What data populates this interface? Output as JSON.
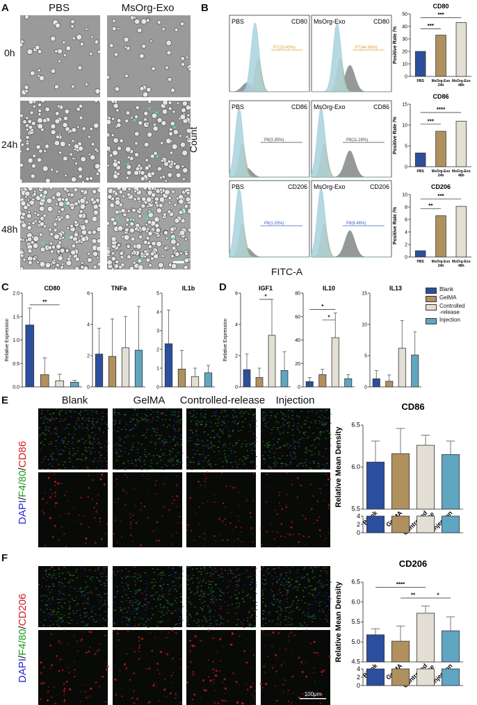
{
  "panels": {
    "A": "A",
    "B": "B",
    "C": "C",
    "D": "D",
    "E": "E",
    "F": "F"
  },
  "panelA": {
    "columns": [
      "PBS",
      "MsOrg-Exo"
    ],
    "rows": [
      "0h",
      "24h",
      "48h"
    ]
  },
  "panelB": {
    "count_label": "Count",
    "xaxis_label": "FITC-A",
    "histograms": [
      {
        "group": "PBS",
        "marker": "CD80",
        "gate": "P7(10.43%)"
      },
      {
        "group": "MsOrg-Exo",
        "marker": "CD80",
        "gate": "P7(44.99%)"
      },
      {
        "group": "PBS",
        "marker": "CD86",
        "gate": "P8(3.35%)"
      },
      {
        "group": "MsOrg-Exo",
        "marker": "CD86",
        "gate": "P8(11.28%)"
      },
      {
        "group": "PBS",
        "marker": "CD206",
        "gate": "P8(1.03%)"
      },
      {
        "group": "MsOrg-Exo",
        "marker": "CD206",
        "gate": "P8(8.46%)"
      }
    ],
    "bar_ylabel": "Positive Rate /%",
    "bar_categories": [
      "PBS",
      "MsOrg-Exo 24h",
      "MsOrg-Exo 48h"
    ]
  },
  "chart_data": [
    {
      "type": "bar",
      "title": "CD80",
      "categories": [
        "PBS",
        "MsOrg-Exo 24h",
        "MsOrg-Exo 48h"
      ],
      "values": [
        20,
        33,
        43
      ],
      "ylim": [
        0,
        50
      ],
      "ylabel": "Positive Rate /%",
      "significance": [
        "***",
        "***",
        "***"
      ]
    },
    {
      "type": "bar",
      "title": "CD86",
      "categories": [
        "PBS",
        "MsOrg-Exo 24h",
        "MsOrg-Exo 48h"
      ],
      "values": [
        3.3,
        8.5,
        10.9
      ],
      "ylim": [
        0,
        15
      ],
      "ylabel": "Positive Rate /%",
      "significance": [
        "****",
        "***"
      ]
    },
    {
      "type": "bar",
      "title": "CD206",
      "categories": [
        "PBS",
        "MsOrg-Exo 24h",
        "MsOrg-Exo 48h"
      ],
      "values": [
        1.0,
        6.6,
        8.1
      ],
      "ylim": [
        0,
        10
      ],
      "ylabel": "Positive Rate /%",
      "significance": [
        "***",
        "**"
      ]
    },
    {
      "type": "bar",
      "title": "CD80",
      "categories": [
        "Blank",
        "GelMA",
        "Controlled-release",
        "Injection"
      ],
      "values": [
        1.32,
        0.26,
        0.13,
        0.1
      ],
      "errors": [
        0.36,
        0.36,
        0.14,
        0.04
      ],
      "ylim": [
        0,
        2
      ],
      "ylabel": "Relative Expression",
      "significance": [
        "**"
      ]
    },
    {
      "type": "bar",
      "title": "TNFa",
      "categories": [
        "Blank",
        "GelMA",
        "Controlled-release",
        "Injection"
      ],
      "values": [
        2.1,
        1.95,
        2.5,
        2.35
      ],
      "errors": [
        1.65,
        2.4,
        2.0,
        2.8
      ],
      "ylim": [
        0,
        6
      ]
    },
    {
      "type": "bar",
      "title": "IL1b",
      "categories": [
        "Blank",
        "GelMA",
        "Controlled-release",
        "Injection"
      ],
      "values": [
        2.3,
        0.95,
        0.55,
        0.75
      ],
      "errors": [
        1.8,
        1.0,
        0.45,
        0.4
      ],
      "ylim": [
        0,
        5
      ]
    },
    {
      "type": "bar",
      "title": "IGF1",
      "categories": [
        "Blank",
        "GelMA",
        "Controlled-release",
        "Injection"
      ],
      "values": [
        1.1,
        0.6,
        3.3,
        1.05
      ],
      "errors": [
        1.0,
        0.6,
        2.3,
        1.2
      ],
      "ylim": [
        0,
        6
      ],
      "ylabel": "Relative Expression",
      "significance": [
        "*"
      ]
    },
    {
      "type": "bar",
      "title": "IL10",
      "categories": [
        "Blank",
        "GelMA",
        "Controlled-release",
        "Injection"
      ],
      "values": [
        4.5,
        10.5,
        42,
        7
      ],
      "errors": [
        3.5,
        4.5,
        21,
        3.5
      ],
      "ylim": [
        0,
        80
      ],
      "significance": [
        "*",
        "*"
      ]
    },
    {
      "type": "bar",
      "title": "IL13",
      "categories": [
        "Blank",
        "GelMA",
        "Controlled-release",
        "Injection"
      ],
      "values": [
        1.3,
        0.9,
        6.2,
        5.1
      ],
      "errors": [
        1.3,
        1.0,
        4.4,
        3.7
      ],
      "ylim": [
        0,
        15
      ]
    },
    {
      "type": "bar",
      "title": "CD86",
      "categories": [
        "Blank",
        "GelMA",
        "Controlled-release",
        "Injection"
      ],
      "values": [
        6.06,
        6.16,
        6.26,
        6.15
      ],
      "errors": [
        0.25,
        0.3,
        0.12,
        0.16
      ],
      "ylim": [
        0,
        6.5
      ],
      "ylabel": "Relative Mean Density",
      "axis_break": true
    },
    {
      "type": "bar",
      "title": "CD206",
      "categories": [
        "Blank",
        "GelMA",
        "Controlled-release",
        "Injection"
      ],
      "values": [
        5.18,
        5.02,
        5.72,
        5.28
      ],
      "errors": [
        0.15,
        0.38,
        0.18,
        0.35
      ],
      "ylim": [
        0,
        6.5
      ],
      "ylabel": "Relative Mean Density",
      "axis_break": true,
      "significance": [
        "****",
        "**",
        "*"
      ]
    }
  ],
  "legendD": [
    "Blank",
    "GelMA",
    "Controlled\n-release",
    "Injection"
  ],
  "legendColors": [
    "#2b4f9c",
    "#b0915e",
    "#e3dfd4",
    "#5fa6c2"
  ],
  "panelE": {
    "columns": [
      "Blank",
      "GelMA",
      "Controlled-release",
      "Injection"
    ],
    "stain_dapi": "DAPI",
    "stain_f480": "F4/80",
    "stain_marker": "CD86",
    "sep": "/"
  },
  "panelF": {
    "stain_dapi": "DAPI",
    "stain_f480": "F4/80",
    "stain_marker": "CD206",
    "sep": "/",
    "scalebar": "100μm"
  },
  "yticks": {
    "cd80b": [
      "0",
      "10",
      "20",
      "30",
      "40",
      "50"
    ],
    "cd86b": [
      "0",
      "5",
      "10",
      "15"
    ],
    "cd206b": [
      "0",
      "2",
      "4",
      "6",
      "8",
      "10"
    ],
    "C1": [
      "0.0",
      "0.5",
      "1.0",
      "1.5",
      "2.0"
    ],
    "C2": [
      "0",
      "2",
      "4",
      "6"
    ],
    "C3": [
      "0",
      "1",
      "2",
      "3",
      "4",
      "5"
    ],
    "D1": [
      "0",
      "2",
      "4",
      "6"
    ],
    "D2": [
      "0",
      "20",
      "40",
      "60",
      "80"
    ],
    "D3": [
      "0",
      "5",
      "10",
      "15"
    ],
    "E": [
      "5.5",
      "6.0",
      "6.5"
    ],
    "F": [
      "4.5",
      "5.0",
      "5.5",
      "6.0",
      "6.5"
    ],
    "low": [
      "0",
      "2",
      "4"
    ]
  }
}
